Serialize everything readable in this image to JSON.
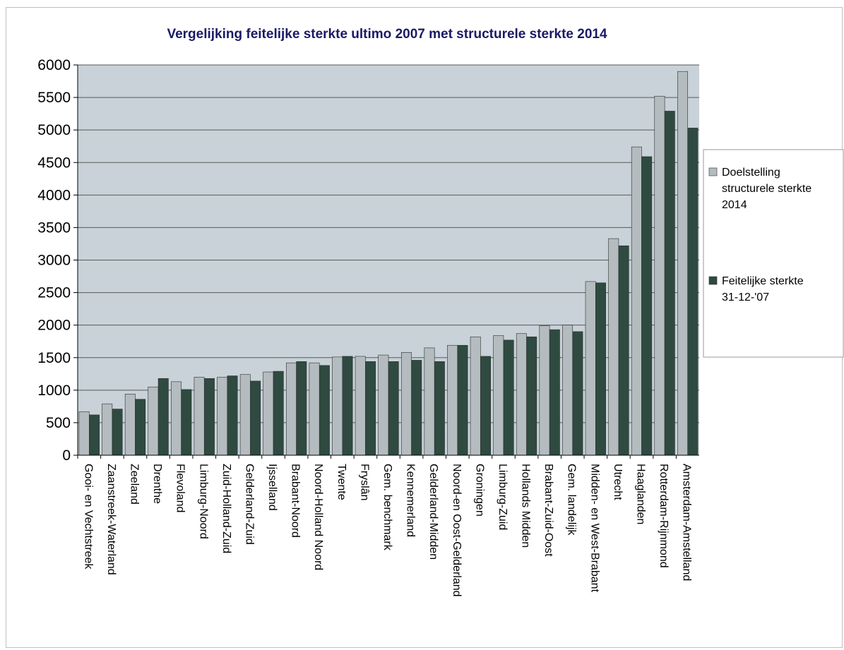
{
  "chart_data": {
    "type": "bar",
    "title": "Vergelijking feitelijke sterkte ultimo 2007 met structurele sterkte 2014",
    "ylim": [
      0,
      6000
    ],
    "yticks": [
      0,
      500,
      1000,
      1500,
      2000,
      2500,
      3000,
      3500,
      4000,
      4500,
      5000,
      5500,
      6000
    ],
    "grid": true,
    "legend_position": "right",
    "colors": {
      "plot_bg": "#c8d2d8",
      "series1": "#b4bcc0",
      "series2": "#2f4a40"
    },
    "categories": [
      "Gooi- en Vechtstreek",
      "Zaanstreek-Waterland",
      "Zeeland",
      "Drenthe",
      "Flevoland",
      "Limburg-Noord",
      "Zuid-Holland-Zuid",
      "Gelderland-Zuid",
      "Ijsselland",
      "Brabant-Noord",
      "Noord-Holland Noord",
      "Twente",
      "Fryslân",
      "Gem. benchmark",
      "Kennemerland",
      "Gelderland-Midden",
      "Noord-en Oost-Gelderland",
      "Groningen",
      "Limburg-Zuid",
      "Hollands Midden",
      "Brabant-Zuid-Oost",
      "Gem. landelijk",
      "Midden- en West-Brabant",
      "Utrecht",
      "Haaglanden",
      "Rotterdam-Rijnmond",
      "Amsterdam-Amstelland"
    ],
    "series": [
      {
        "name": "Doelstelling structurele sterkte 2014",
        "legend_lines": [
          "Doelstelling",
          "structurele sterkte",
          "2014"
        ],
        "values": [
          670,
          790,
          940,
          1050,
          1130,
          1200,
          1200,
          1240,
          1280,
          1420,
          1420,
          1510,
          1520,
          1540,
          1580,
          1650,
          1690,
          1820,
          1840,
          1870,
          1990,
          2000,
          2670,
          3330,
          4740,
          5520,
          5900
        ]
      },
      {
        "name": "Feitelijke sterkte 31-12-'07",
        "legend_lines": [
          "Feitelijke sterkte",
          "31-12-'07"
        ],
        "values": [
          620,
          710,
          860,
          1180,
          1010,
          1180,
          1220,
          1140,
          1290,
          1440,
          1380,
          1520,
          1440,
          1440,
          1460,
          1440,
          1690,
          1520,
          1770,
          1820,
          1930,
          1900,
          2650,
          3220,
          4590,
          5290,
          5030
        ]
      }
    ]
  }
}
